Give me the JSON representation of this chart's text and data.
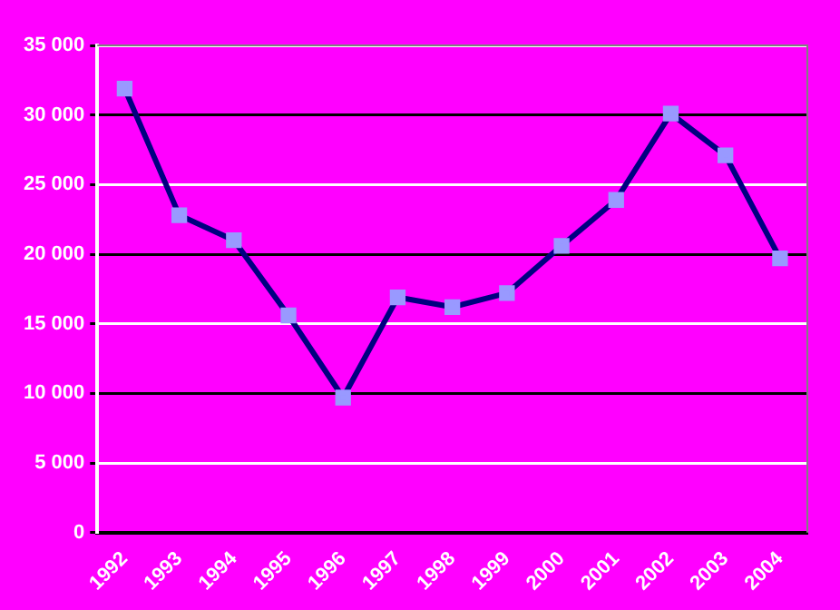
{
  "chart_data": {
    "type": "line",
    "categories": [
      "1992",
      "1993",
      "1994",
      "1995",
      "1996",
      "1997",
      "1998",
      "1999",
      "2000",
      "2001",
      "2002",
      "2003",
      "2004"
    ],
    "series": [
      {
        "color": "#000080",
        "values": [
          31900,
          22800,
          21000,
          15600,
          9700,
          16900,
          16200,
          17200,
          20600,
          23900,
          30100,
          27100,
          19700
        ]
      }
    ],
    "ylim": [
      0,
      35000
    ],
    "yticks": [
      {
        "value": 0,
        "label": "0"
      },
      {
        "value": 5000,
        "label": "5 000"
      },
      {
        "value": 10000,
        "label": "10 000"
      },
      {
        "value": 15000,
        "label": "15 000"
      },
      {
        "value": 20000,
        "label": "20 000"
      },
      {
        "value": 25000,
        "label": "25 000"
      },
      {
        "value": 30000,
        "label": "30 000"
      },
      {
        "value": 35000,
        "label": "35 000"
      }
    ],
    "grid": "y",
    "legend": false,
    "marker": "square",
    "line_style": "solid"
  }
}
